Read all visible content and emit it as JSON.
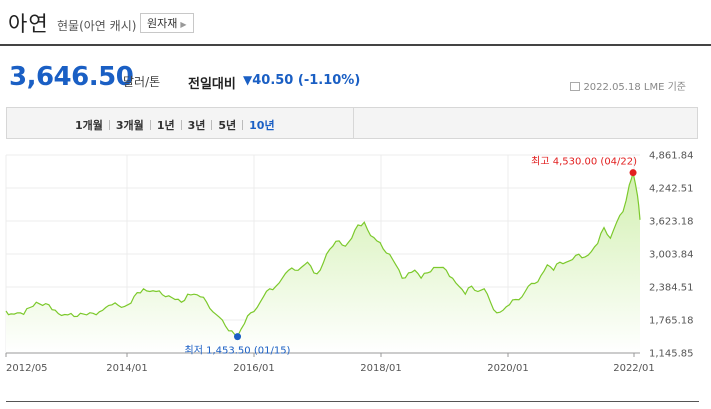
{
  "header": {
    "title": "아연",
    "subtitle": "현물(아연 캐시)",
    "tag_label": "원자재"
  },
  "quote": {
    "price": "3,646.50",
    "unit": "달러/톤",
    "change_label": "전일대비",
    "change_arrow": "▼",
    "change_value": "40.50 (-1.10%)",
    "date": "2022.05.18",
    "source": "LME 기준"
  },
  "tabs": [
    {
      "label": "1개월",
      "active": false
    },
    {
      "label": "3개월",
      "active": false
    },
    {
      "label": "1년",
      "active": false
    },
    {
      "label": "3년",
      "active": false
    },
    {
      "label": "5년",
      "active": false
    },
    {
      "label": "10년",
      "active": true
    }
  ],
  "colors": {
    "accent": "#1a5fc4",
    "line": "#7cc92c",
    "fill_top": "#d2f0b0",
    "max_marker": "#e21f1f",
    "min_marker": "#1a5fc4"
  },
  "chart_data": {
    "type": "area",
    "x_tick_labels": [
      "2012/05",
      "2014/01",
      "2016/01",
      "2018/01",
      "2020/01",
      "2022/01"
    ],
    "y_tick_labels": [
      "4,861.84",
      "4,242.51",
      "3,623.18",
      "3,003.84",
      "2,384.51",
      "1,765.18",
      "1,145.85"
    ],
    "ylim": [
      1145.85,
      4861.84
    ],
    "xlim": [
      2012.37,
      2022.42
    ],
    "grid": true,
    "max": {
      "label": "최고 4,530.00 (04/22)",
      "x": 2022.31,
      "y": 4530
    },
    "min": {
      "label": "최저 1,453.50 (01/15)",
      "x": 2016.04,
      "y": 1453.5
    },
    "series": [
      {
        "x": [
          2012.37,
          2012.45,
          2012.55,
          2012.65,
          2012.75,
          2012.85,
          2012.95,
          2013.05,
          2013.15,
          2013.25,
          2013.35,
          2013.45,
          2013.55,
          2013.65,
          2013.75,
          2013.85,
          2013.95,
          2014.05,
          2014.15,
          2014.25,
          2014.35,
          2014.45,
          2014.55,
          2014.65,
          2014.75,
          2014.85,
          2014.95,
          2015.05,
          2015.15,
          2015.25,
          2015.35,
          2015.45,
          2015.55,
          2015.65,
          2015.75,
          2015.85,
          2015.95,
          2016.04,
          2016.15,
          2016.25,
          2016.35,
          2016.45,
          2016.55,
          2016.65,
          2016.75,
          2016.85,
          2016.95,
          2017.05,
          2017.15,
          2017.25,
          2017.35,
          2017.45,
          2017.55,
          2017.65,
          2017.75,
          2017.85,
          2017.95,
          2018.05,
          2018.15,
          2018.25,
          2018.35,
          2018.45,
          2018.55,
          2018.65,
          2018.75,
          2018.85,
          2018.95,
          2019.05,
          2019.15,
          2019.25,
          2019.35,
          2019.45,
          2019.55,
          2019.65,
          2019.75,
          2019.85,
          2019.95,
          2020.05,
          2020.15,
          2020.25,
          2020.35,
          2020.45,
          2020.55,
          2020.65,
          2020.75,
          2020.85,
          2020.95,
          2021.05,
          2021.15,
          2021.25,
          2021.35,
          2021.45,
          2021.55,
          2021.65,
          2021.75,
          2021.85,
          2021.95,
          2022.05,
          2022.15,
          2022.25,
          2022.31,
          2022.38,
          2022.42
        ],
        "values": [
          1935,
          1880,
          1900,
          1870,
          2000,
          2100,
          2040,
          2050,
          1950,
          1850,
          1860,
          1830,
          1890,
          1860,
          1890,
          1920,
          2000,
          2050,
          2040,
          2020,
          2080,
          2280,
          2350,
          2300,
          2300,
          2240,
          2220,
          2150,
          2100,
          2250,
          2250,
          2200,
          2100,
          1920,
          1820,
          1650,
          1560,
          1453.5,
          1700,
          1900,
          2000,
          2200,
          2350,
          2400,
          2550,
          2700,
          2700,
          2750,
          2850,
          2650,
          2700,
          3000,
          3150,
          3250,
          3150,
          3300,
          3550,
          3600,
          3350,
          3250,
          3100,
          3000,
          2800,
          2550,
          2650,
          2700,
          2550,
          2650,
          2750,
          2750,
          2700,
          2550,
          2400,
          2250,
          2400,
          2300,
          2350,
          2100,
          1900,
          1950,
          2050,
          2150,
          2200,
          2400,
          2450,
          2600,
          2800,
          2700,
          2850,
          2850,
          2900,
          3000,
          2950,
          3050,
          3200,
          3500,
          3300,
          3600,
          3800,
          4300,
          4530,
          4100,
          3646.5
        ]
      }
    ]
  }
}
